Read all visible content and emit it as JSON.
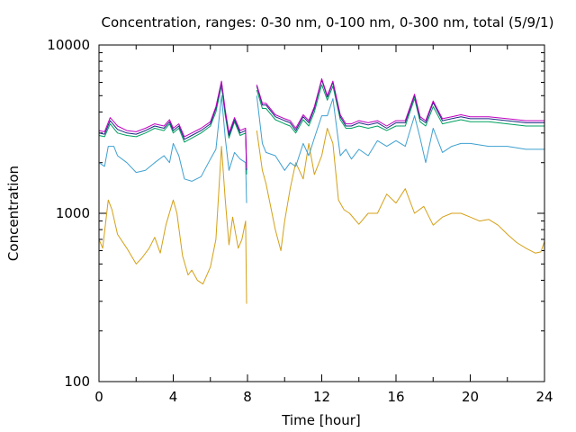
{
  "chart_data": {
    "type": "line",
    "title": "Concentration, ranges: 0-30 nm, 0-100 nm, 0-300 nm, total (5/9/1)",
    "xlabel": "Time [hour]",
    "ylabel": "Concentration",
    "xlim": [
      0,
      24
    ],
    "ylim": [
      100,
      10000
    ],
    "yscale": "log",
    "grid": false,
    "legend": "none",
    "xticks": [
      "0",
      "4",
      "8",
      "12",
      "16",
      "20",
      "24"
    ],
    "yticks": [
      "100",
      "1000",
      "10000"
    ],
    "series": [
      {
        "color": "#d4a017",
        "x": [
          0,
          0.2,
          0.5,
          0.7,
          1.0,
          1.5,
          2.0,
          2.3,
          2.7,
          3.0,
          3.3,
          3.6,
          4.0,
          4.2,
          4.5,
          4.8,
          5.0,
          5.3,
          5.6,
          6.0,
          6.3,
          6.6,
          6.8,
          7.0,
          7.2,
          7.5,
          7.7,
          7.9,
          7.95,
          8.5,
          8.8,
          9.0,
          9.5,
          9.8,
          10.0,
          10.3,
          10.6,
          11.0,
          11.3,
          11.6,
          12.0,
          12.3,
          12.6,
          12.9,
          13.2,
          13.5,
          14.0,
          14.5,
          15.0,
          15.5,
          16.0,
          16.5,
          17.0,
          17.5,
          18.0,
          18.5,
          19.0,
          19.5,
          20.0,
          20.5,
          21.0,
          21.5,
          22.0,
          22.5,
          23.0,
          23.5,
          23.8,
          24.0
        ],
        "y": [
          700,
          620,
          1200,
          1050,
          750,
          620,
          500,
          540,
          620,
          720,
          580,
          850,
          1200,
          1000,
          560,
          430,
          460,
          400,
          380,
          480,
          700,
          2500,
          1200,
          650,
          950,
          620,
          700,
          900,
          290,
          3100,
          1800,
          1500,
          800,
          600,
          900,
          1400,
          2000,
          1600,
          2600,
          1700,
          2200,
          3200,
          2600,
          1200,
          1050,
          1000,
          860,
          1000,
          1000,
          1300,
          1150,
          1400,
          1000,
          1100,
          850,
          950,
          1000,
          1000,
          950,
          900,
          920,
          850,
          750,
          670,
          620,
          580,
          590,
          680
        ]
      },
      {
        "color": "#3fa0d0",
        "x": [
          0,
          0.3,
          0.5,
          0.8,
          1.0,
          1.5,
          2.0,
          2.5,
          3.0,
          3.5,
          3.8,
          4.0,
          4.3,
          4.6,
          5.0,
          5.5,
          6.0,
          6.3,
          6.6,
          6.8,
          7.0,
          7.3,
          7.6,
          7.9,
          7.95,
          8.5,
          8.8,
          9.0,
          9.5,
          10.0,
          10.3,
          10.6,
          11.0,
          11.3,
          11.6,
          12.0,
          12.3,
          12.6,
          13.0,
          13.3,
          13.6,
          14.0,
          14.5,
          15.0,
          15.5,
          16.0,
          16.5,
          17.0,
          17.3,
          17.6,
          18.0,
          18.5,
          19.0,
          19.5,
          20.0,
          21.0,
          22.0,
          23.0,
          24.0
        ],
        "y": [
          2000,
          1900,
          2500,
          2500,
          2200,
          2000,
          1750,
          1800,
          2000,
          2200,
          2000,
          2600,
          2200,
          1600,
          1550,
          1650,
          2100,
          2400,
          5000,
          2800,
          1800,
          2300,
          2100,
          2000,
          1150,
          5000,
          2600,
          2300,
          2200,
          1800,
          2000,
          1900,
          2600,
          2200,
          2800,
          3800,
          3800,
          4800,
          2200,
          2400,
          2100,
          2400,
          2200,
          2700,
          2500,
          2700,
          2500,
          3800,
          2800,
          2000,
          3200,
          2300,
          2500,
          2600,
          2600,
          2500,
          2500,
          2400,
          2400
        ]
      },
      {
        "color": "#00a060",
        "x": [
          0,
          0.3,
          0.6,
          1.0,
          1.5,
          2.0,
          2.5,
          3.0,
          3.5,
          3.8,
          4.0,
          4.3,
          4.6,
          5.0,
          5.5,
          6.0,
          6.3,
          6.6,
          6.8,
          7.0,
          7.3,
          7.6,
          7.9,
          7.95,
          8.5,
          8.8,
          9.0,
          9.5,
          10.0,
          10.3,
          10.6,
          11.0,
          11.3,
          11.6,
          12.0,
          12.3,
          12.6,
          13.0,
          13.3,
          13.6,
          14.0,
          14.5,
          15.0,
          15.5,
          16.0,
          16.5,
          17.0,
          17.3,
          17.6,
          18.0,
          18.5,
          19.0,
          19.5,
          20.0,
          21.0,
          22.0,
          23.0,
          24.0
        ],
        "y": [
          2900,
          2850,
          3400,
          3000,
          2900,
          2850,
          3000,
          3200,
          3100,
          3400,
          3000,
          3200,
          2650,
          2800,
          3000,
          3300,
          4000,
          5700,
          3800,
          2800,
          3500,
          2900,
          3000,
          1700,
          5400,
          4200,
          4200,
          3600,
          3400,
          3300,
          3000,
          3600,
          3300,
          4000,
          5800,
          4700,
          5700,
          3600,
          3200,
          3200,
          3300,
          3200,
          3300,
          3100,
          3300,
          3300,
          4800,
          3500,
          3300,
          4300,
          3400,
          3500,
          3600,
          3500,
          3500,
          3400,
          3300,
          3300
        ]
      },
      {
        "color": "#1a2a80",
        "x": [
          0,
          0.3,
          0.6,
          1.0,
          1.5,
          2.0,
          2.5,
          3.0,
          3.5,
          3.8,
          4.0,
          4.3,
          4.6,
          5.0,
          5.5,
          6.0,
          6.3,
          6.6,
          6.8,
          7.0,
          7.3,
          7.6,
          7.9,
          7.95,
          8.5,
          8.8,
          9.0,
          9.5,
          10.0,
          10.3,
          10.6,
          11.0,
          11.3,
          11.6,
          12.0,
          12.3,
          12.6,
          13.0,
          13.3,
          13.6,
          14.0,
          14.5,
          15.0,
          15.5,
          16.0,
          16.5,
          17.0,
          17.3,
          17.6,
          18.0,
          18.5,
          19.0,
          19.5,
          20.0,
          21.0,
          22.0,
          23.0,
          24.0
        ],
        "y": [
          3000,
          2950,
          3550,
          3150,
          3000,
          2950,
          3100,
          3300,
          3200,
          3500,
          3100,
          3300,
          2750,
          2900,
          3100,
          3400,
          4200,
          6000,
          4000,
          2900,
          3600,
          3000,
          3100,
          1800,
          5700,
          4400,
          4400,
          3750,
          3550,
          3450,
          3100,
          3750,
          3450,
          4200,
          6200,
          4900,
          6000,
          3750,
          3300,
          3300,
          3450,
          3350,
          3450,
          3200,
          3450,
          3450,
          5000,
          3650,
          3450,
          4550,
          3550,
          3650,
          3750,
          3650,
          3650,
          3550,
          3450,
          3450
        ]
      },
      {
        "color": "#c000c0",
        "x": [
          0,
          0.3,
          0.6,
          1.0,
          1.5,
          2.0,
          2.5,
          3.0,
          3.5,
          3.8,
          4.0,
          4.3,
          4.6,
          5.0,
          5.5,
          6.0,
          6.3,
          6.6,
          6.8,
          7.0,
          7.3,
          7.6,
          7.9,
          7.95,
          8.5,
          8.8,
          9.0,
          9.5,
          10.0,
          10.3,
          10.6,
          11.0,
          11.3,
          11.6,
          12.0,
          12.3,
          12.6,
          13.0,
          13.3,
          13.6,
          14.0,
          14.5,
          15.0,
          15.5,
          16.0,
          16.5,
          17.0,
          17.3,
          17.6,
          18.0,
          18.5,
          19.0,
          19.5,
          20.0,
          21.0,
          22.0,
          23.0,
          24.0
        ],
        "y": [
          3100,
          3050,
          3700,
          3300,
          3100,
          3050,
          3200,
          3400,
          3300,
          3600,
          3200,
          3400,
          2850,
          3000,
          3200,
          3500,
          4300,
          6100,
          4100,
          3000,
          3700,
          3100,
          3200,
          1850,
          5800,
          4500,
          4500,
          3850,
          3650,
          3550,
          3200,
          3850,
          3550,
          4300,
          6300,
          5000,
          6100,
          3850,
          3400,
          3400,
          3550,
          3450,
          3550,
          3300,
          3550,
          3550,
          5100,
          3750,
          3550,
          4650,
          3650,
          3750,
          3850,
          3750,
          3750,
          3650,
          3550,
          3550
        ]
      }
    ]
  }
}
